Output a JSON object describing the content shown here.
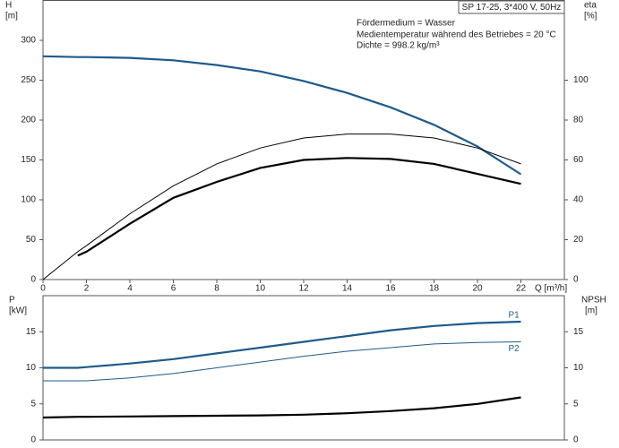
{
  "chart_data": [
    {
      "type": "line",
      "info_box": "SP 17-25, 3*400 V, 50Hz",
      "notes": [
        "Fördermedium = Wasser",
        "Medientemperatur während des Betriebes = 20 °C",
        "Dichte = 998.2 kg/m³"
      ],
      "xlabel": "Q [m³/h]",
      "ylabel": [
        "H",
        "[m]"
      ],
      "y2label": [
        "eta",
        "[%]"
      ],
      "xlim": [
        0,
        24
      ],
      "xticks": [
        0,
        2,
        4,
        6,
        8,
        10,
        12,
        14,
        16,
        18,
        20,
        22
      ],
      "ylim": [
        0,
        350
      ],
      "yticks": [
        0,
        50,
        100,
        150,
        200,
        250,
        300
      ],
      "y2lim": [
        0,
        140
      ],
      "y2ticks": [
        0,
        20,
        40,
        60,
        80,
        100
      ],
      "x": [
        0,
        1.6,
        2,
        4,
        6,
        8,
        10,
        12,
        14,
        16,
        18,
        20,
        22
      ],
      "series": [
        {
          "color": "#1f5a8a",
          "style": "thick",
          "values": [
            280,
            279,
            279,
            278,
            275,
            269,
            261,
            249,
            234,
            216,
            194,
            167,
            132
          ]
        },
        {
          "color": "#000000",
          "style": "thin",
          "axis": "y2",
          "values": [
            0,
            14,
            17,
            33,
            47,
            58,
            66,
            71,
            73,
            73,
            71,
            66,
            58
          ]
        },
        {
          "color": "#000000",
          "style": "thick",
          "axis": "y2",
          "values": [
            null,
            12,
            14,
            28,
            41,
            49,
            56,
            60,
            61,
            60.5,
            58,
            53,
            48
          ]
        }
      ]
    },
    {
      "type": "line",
      "ylabel": [
        "P",
        "[kW]"
      ],
      "y2label": [
        "NPSH",
        "[m]"
      ],
      "xlim": [
        0,
        24
      ],
      "ylim": [
        0,
        20
      ],
      "yticks": [
        0,
        5,
        10,
        15
      ],
      "y2lim": [
        0,
        20
      ],
      "y2ticks": [
        0,
        5,
        10,
        15
      ],
      "x": [
        0,
        1.6,
        2,
        4,
        6,
        8,
        10,
        12,
        14,
        16,
        18,
        20,
        22
      ],
      "series": [
        {
          "name": "P1",
          "color": "#1f5a8a",
          "style": "thick",
          "values": [
            10,
            10,
            10.1,
            10.6,
            11.2,
            12,
            12.8,
            13.6,
            14.4,
            15.2,
            15.8,
            16.2,
            16.4
          ]
        },
        {
          "name": "P2",
          "color": "#1f5a8a",
          "style": "thin",
          "values": [
            8.2,
            8.2,
            8.2,
            8.6,
            9.2,
            10,
            10.8,
            11.6,
            12.3,
            12.8,
            13.3,
            13.5,
            13.6
          ]
        },
        {
          "color": "#000000",
          "style": "thick",
          "axis": "y2",
          "values": [
            3.1,
            3.2,
            3.2,
            3.25,
            3.3,
            3.35,
            3.4,
            3.5,
            3.7,
            4.0,
            4.4,
            5.0,
            5.9
          ]
        }
      ]
    }
  ]
}
